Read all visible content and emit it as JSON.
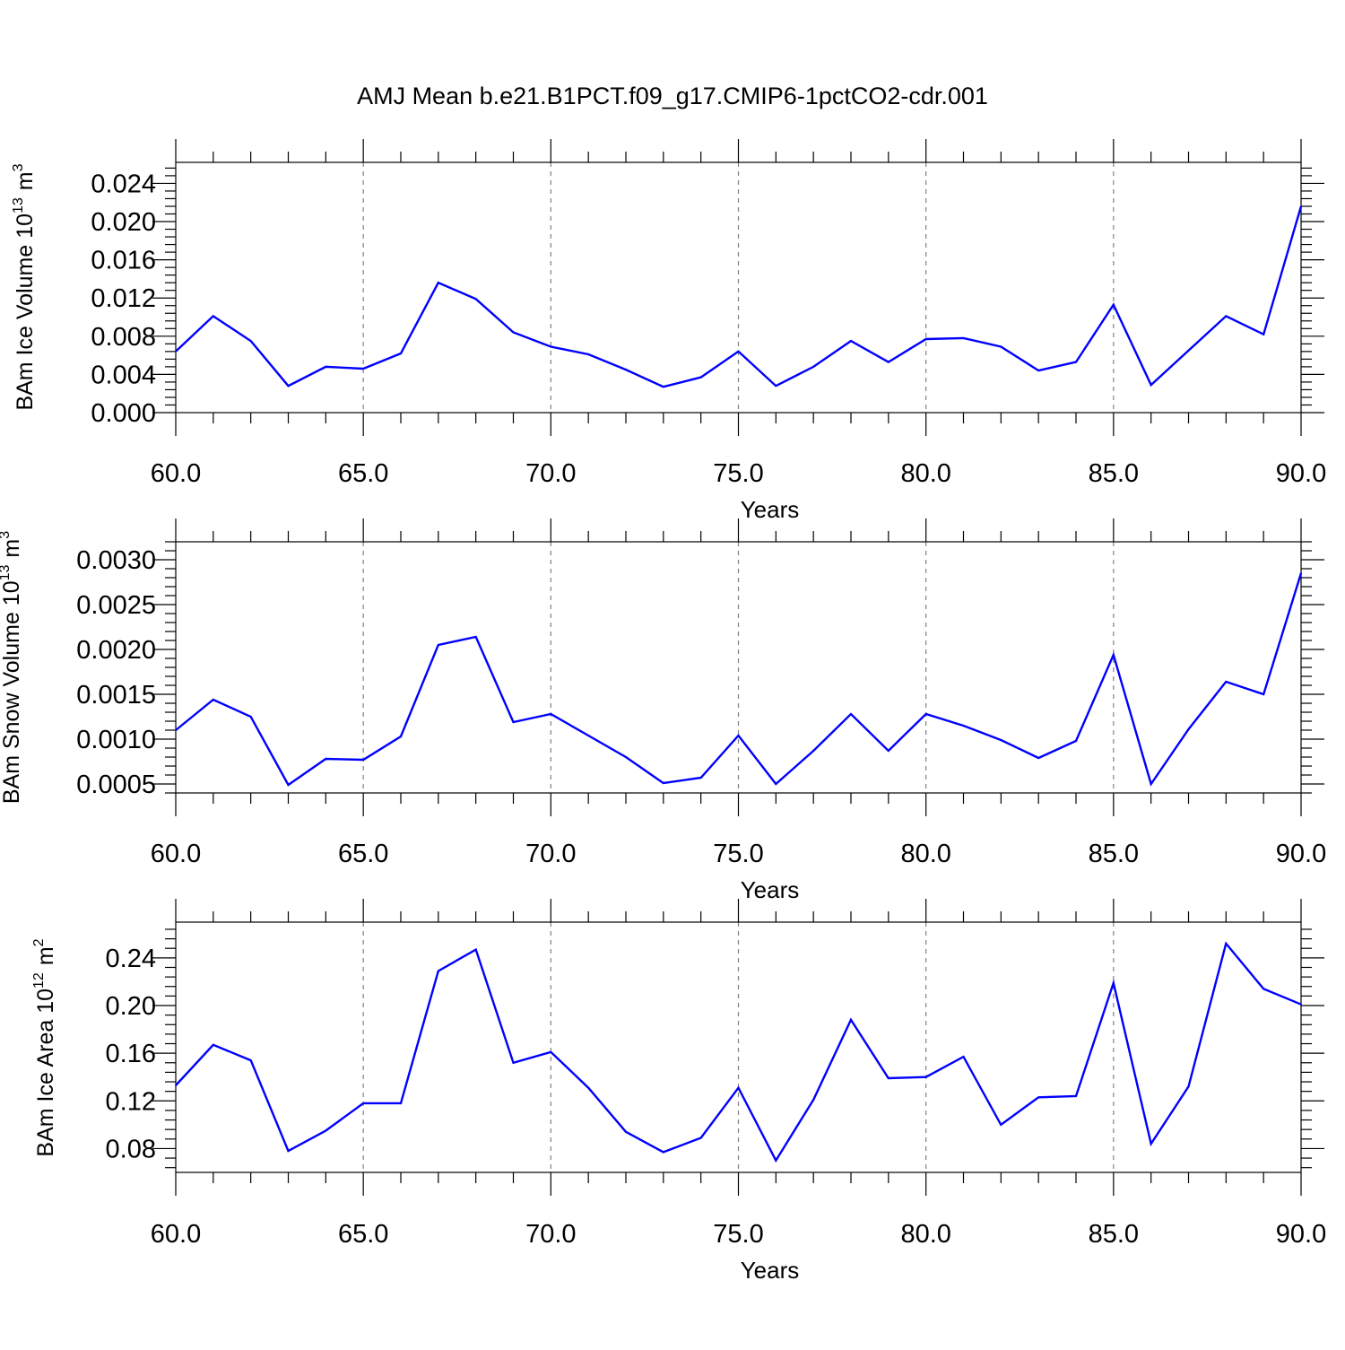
{
  "figure": {
    "title": "AMJ Mean b.e21.B1PCT.f09_g17.CMIP6-1pctCO2-cdr.001"
  },
  "colors": {
    "line": "#0000ff",
    "axis": "#000000",
    "gridline": "#808080"
  },
  "chart_data": [
    {
      "type": "line",
      "ylabel": "BAm Ice Volume 10",
      "ylabel_exp": "13",
      "ylabel_unit": "m",
      "ylabel_unit_exp": "3",
      "xlabel": "Years",
      "xlim": [
        60,
        90
      ],
      "ylim": [
        0.0,
        0.0262
      ],
      "xticks": [
        60,
        65,
        70,
        75,
        80,
        85,
        90
      ],
      "xtick_labels": [
        "60.0",
        "65.0",
        "70.0",
        "75.0",
        "80.0",
        "85.0",
        "90.0"
      ],
      "yticks": [
        0.0,
        0.004,
        0.008,
        0.012,
        0.016,
        0.02,
        0.024
      ],
      "ytick_labels": [
        "0.000",
        "0.004",
        "0.008",
        "0.012",
        "0.016",
        "0.020",
        "0.024"
      ],
      "vgrid": [
        65,
        70,
        75,
        80,
        85
      ],
      "x": [
        60,
        61,
        62,
        63,
        64,
        65,
        66,
        67,
        68,
        69,
        70,
        71,
        72,
        73,
        74,
        75,
        76,
        77,
        78,
        79,
        80,
        81,
        82,
        83,
        84,
        85,
        86,
        87,
        88,
        89,
        90
      ],
      "series": [
        {
          "values": [
            0.0064,
            0.0101,
            0.0075,
            0.0028,
            0.0048,
            0.0046,
            0.0062,
            0.0136,
            0.0119,
            0.0084,
            0.0069,
            0.0061,
            0.0045,
            0.0027,
            0.0037,
            0.0064,
            0.0028,
            0.0048,
            0.0075,
            0.0053,
            0.0077,
            0.0078,
            0.0069,
            0.0044,
            0.0053,
            0.0113,
            0.0029,
            0.0065,
            0.0101,
            0.0082,
            0.0216
          ]
        }
      ]
    },
    {
      "type": "line",
      "ylabel": "BAm Snow Volume 10",
      "ylabel_exp": "13",
      "ylabel_unit": "m",
      "ylabel_unit_exp": "3",
      "xlabel": "Years",
      "xlim": [
        60,
        90
      ],
      "ylim": [
        0.0004,
        0.0032
      ],
      "xticks": [
        60,
        65,
        70,
        75,
        80,
        85,
        90
      ],
      "xtick_labels": [
        "60.0",
        "65.0",
        "70.0",
        "75.0",
        "80.0",
        "85.0",
        "90.0"
      ],
      "yticks": [
        0.0005,
        0.001,
        0.0015,
        0.002,
        0.0025,
        0.003
      ],
      "ytick_labels": [
        "0.0005",
        "0.0010",
        "0.0015",
        "0.0020",
        "0.0025",
        "0.0030"
      ],
      "vgrid": [
        65,
        70,
        75,
        80,
        85
      ],
      "x": [
        60,
        61,
        62,
        63,
        64,
        65,
        66,
        67,
        68,
        69,
        70,
        71,
        72,
        73,
        74,
        75,
        76,
        77,
        78,
        79,
        80,
        81,
        82,
        83,
        84,
        85,
        86,
        87,
        88,
        89,
        90
      ],
      "series": [
        {
          "values": [
            0.0011,
            0.00144,
            0.00125,
            0.00049,
            0.00078,
            0.00077,
            0.00103,
            0.00205,
            0.00214,
            0.00119,
            0.00128,
            0.00104,
            0.0008,
            0.00051,
            0.00057,
            0.00104,
            0.0005,
            0.00087,
            0.00128,
            0.00087,
            0.00128,
            0.00115,
            0.00099,
            0.00079,
            0.00098,
            0.00194,
            0.0005,
            0.00111,
            0.00164,
            0.0015,
            0.00285
          ]
        }
      ]
    },
    {
      "type": "line",
      "ylabel": "BAm Ice Area 10",
      "ylabel_exp": "12",
      "ylabel_unit": "m",
      "ylabel_unit_exp": "2",
      "xlabel": "Years",
      "xlim": [
        60,
        90
      ],
      "ylim": [
        0.06,
        0.27
      ],
      "xticks": [
        60,
        65,
        70,
        75,
        80,
        85,
        90
      ],
      "xtick_labels": [
        "60.0",
        "65.0",
        "70.0",
        "75.0",
        "80.0",
        "85.0",
        "90.0"
      ],
      "yticks": [
        0.08,
        0.12,
        0.16,
        0.2,
        0.24
      ],
      "ytick_labels": [
        "0.08",
        "0.12",
        "0.16",
        "0.20",
        "0.24"
      ],
      "vgrid": [
        65,
        70,
        75,
        80,
        85
      ],
      "x": [
        60,
        61,
        62,
        63,
        64,
        65,
        66,
        67,
        68,
        69,
        70,
        71,
        72,
        73,
        74,
        75,
        76,
        77,
        78,
        79,
        80,
        81,
        82,
        83,
        84,
        85,
        86,
        87,
        88,
        89,
        90
      ],
      "series": [
        {
          "values": [
            0.133,
            0.167,
            0.154,
            0.078,
            0.095,
            0.118,
            0.118,
            0.229,
            0.247,
            0.152,
            0.161,
            0.131,
            0.094,
            0.077,
            0.089,
            0.131,
            0.07,
            0.121,
            0.188,
            0.139,
            0.14,
            0.157,
            0.1,
            0.123,
            0.124,
            0.219,
            0.084,
            0.132,
            0.252,
            0.214,
            0.201
          ]
        }
      ]
    }
  ]
}
